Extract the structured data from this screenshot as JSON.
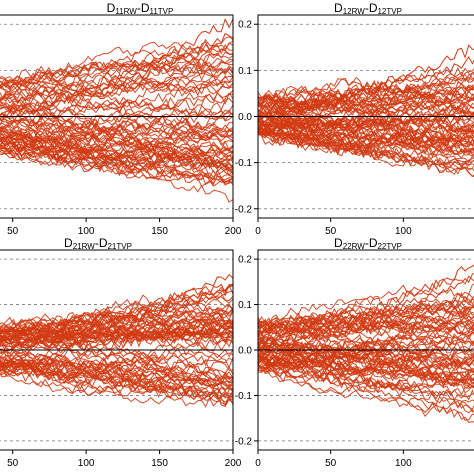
{
  "chart_data": [
    {
      "type": "line",
      "title_main": "D",
      "title_sub1": "11RW",
      "title_dash": "-",
      "title_main2": "D",
      "title_sub2": "11TVP",
      "x_ticks": [
        "50",
        "100",
        "150",
        "200"
      ],
      "y_ticks": [],
      "xlim": [
        40,
        200
      ],
      "ylim": [
        -0.22,
        0.22
      ],
      "grid_dashed_y": [
        -0.2,
        -0.1,
        0.1,
        0.2
      ],
      "zero_line": 0.0,
      "series_color": "#d13a12",
      "band_center": 0.0,
      "band_halfwidth_start": 0.075,
      "band_halfwidth_end": 0.14,
      "outlier_max": 0.21,
      "outlier_min": -0.12
    },
    {
      "type": "line",
      "title_main": "D",
      "title_sub1": "12RW",
      "title_dash": "-",
      "title_main2": "D",
      "title_sub2": "12TVP",
      "x_ticks": [
        "0",
        "50",
        "100"
      ],
      "y_ticks": [
        "0.2",
        "0.1",
        "0.0",
        "-0.1",
        "-0.2"
      ],
      "xlim": [
        0,
        150
      ],
      "ylim": [
        -0.22,
        0.22
      ],
      "grid_dashed_y": [
        -0.2,
        -0.1,
        0.1,
        0.2
      ],
      "zero_line": 0.0,
      "series_color": "#d13a12",
      "band_center": 0.0,
      "band_halfwidth_start": 0.04,
      "band_halfwidth_end": 0.09,
      "outlier_max": 0.15,
      "outlier_min": -0.08
    },
    {
      "type": "line",
      "title_main": "D",
      "title_sub1": "21RW",
      "title_dash": "-",
      "title_main2": "D",
      "title_sub2": "21TVP",
      "x_ticks": [
        "50",
        "100",
        "150",
        "200"
      ],
      "y_ticks": [],
      "xlim": [
        40,
        200
      ],
      "ylim": [
        -0.22,
        0.22
      ],
      "grid_dashed_y": [
        -0.2,
        -0.1,
        0.1,
        0.2
      ],
      "zero_line": 0.0,
      "series_color": "#d13a12",
      "band_center": 0.0,
      "band_halfwidth_start": 0.05,
      "band_halfwidth_end": 0.11,
      "outlier_max": 0.17,
      "outlier_min": -0.12
    },
    {
      "type": "line",
      "title_main": "D",
      "title_sub1": "22RW",
      "title_dash": "-",
      "title_main2": "D",
      "title_sub2": "22TVP",
      "x_ticks": [
        "0",
        "50",
        "100"
      ],
      "y_ticks": [
        "0.2",
        "0.1",
        "0.0",
        "-0.1",
        "-0.2"
      ],
      "xlim": [
        0,
        150
      ],
      "ylim": [
        -0.22,
        0.22
      ],
      "grid_dashed_y": [
        -0.2,
        -0.1,
        0.1,
        0.2
      ],
      "zero_line": 0.0,
      "series_color": "#d13a12",
      "band_center": 0.01,
      "band_halfwidth_start": 0.05,
      "band_halfwidth_end": 0.1,
      "outlier_max": 0.19,
      "outlier_min": -0.08
    }
  ]
}
